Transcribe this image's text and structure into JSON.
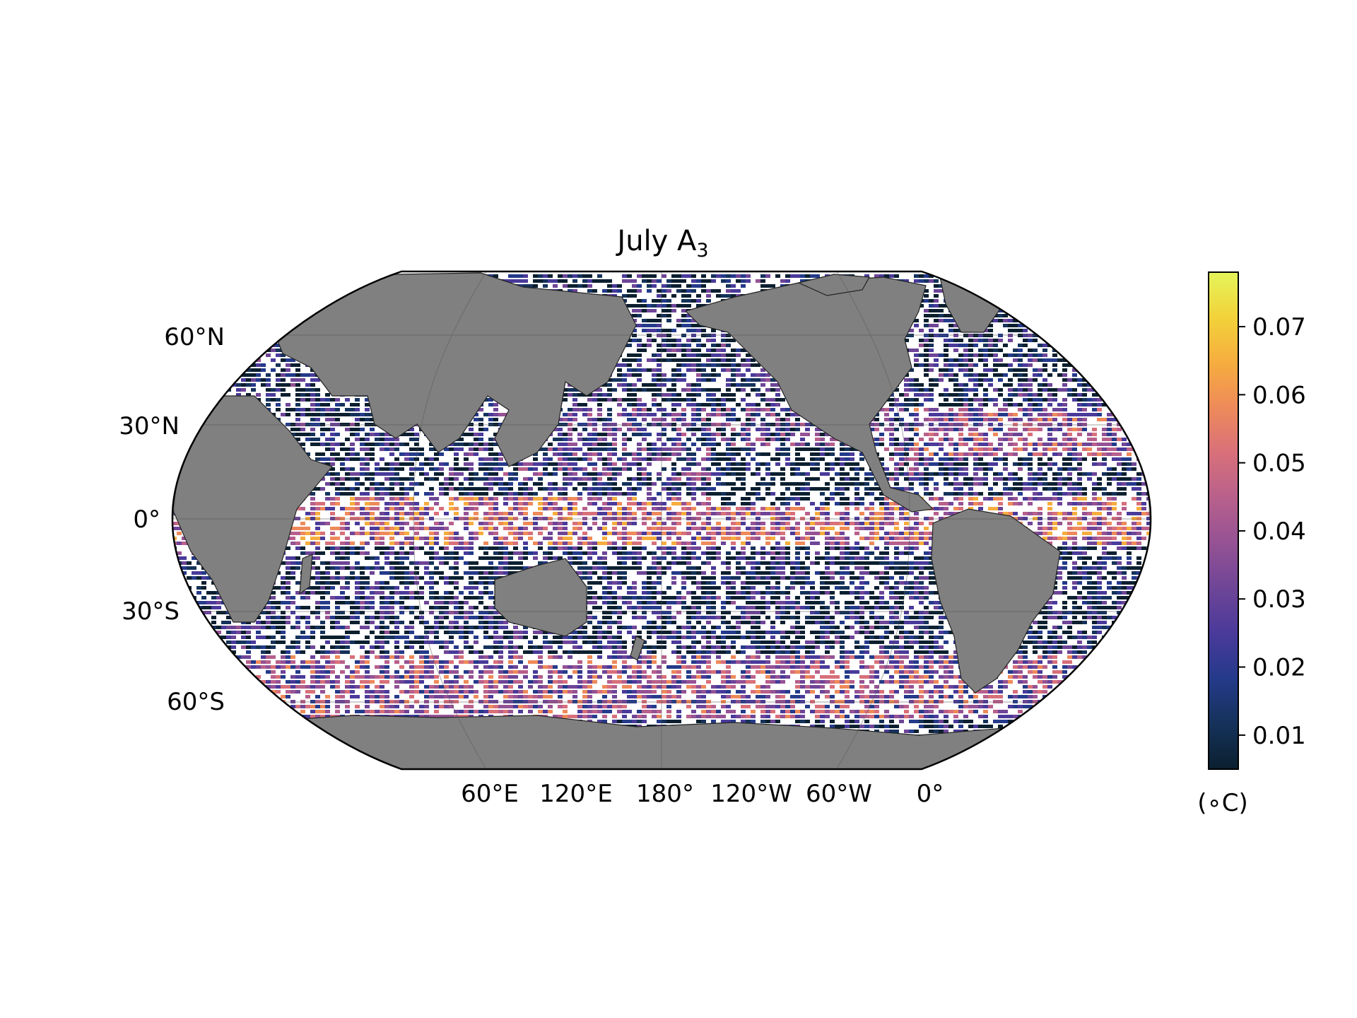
{
  "title": {
    "main": "July A",
    "subscript": "3"
  },
  "lat_labels": [
    "60°N",
    "30°N",
    "0°",
    "30°S",
    "60°S"
  ],
  "lon_labels": [
    "60°E",
    "120°E",
    "180°",
    "120°W",
    "60°W",
    "0°"
  ],
  "colorbar": {
    "ticks": [
      "0.01",
      "0.02",
      "0.03",
      "0.04",
      "0.05",
      "0.06",
      "0.07"
    ],
    "tick_values": [
      0.01,
      0.02,
      0.03,
      0.04,
      0.05,
      0.06,
      0.07
    ],
    "range": [
      0.005,
      0.078
    ],
    "unit": "(∘C)",
    "colormap": [
      "#0b1f2f",
      "#15325a",
      "#243a8a",
      "#4a3a9a",
      "#6e4597",
      "#955294",
      "#b8608c",
      "#d8707a",
      "#ee8a5a",
      "#f6ad3e",
      "#f2d23a",
      "#e4f55a"
    ]
  },
  "map": {
    "projection": "Robinson",
    "central_longitude": "180°",
    "land_color": "#808080",
    "no_data_color": "#ffffff"
  }
}
